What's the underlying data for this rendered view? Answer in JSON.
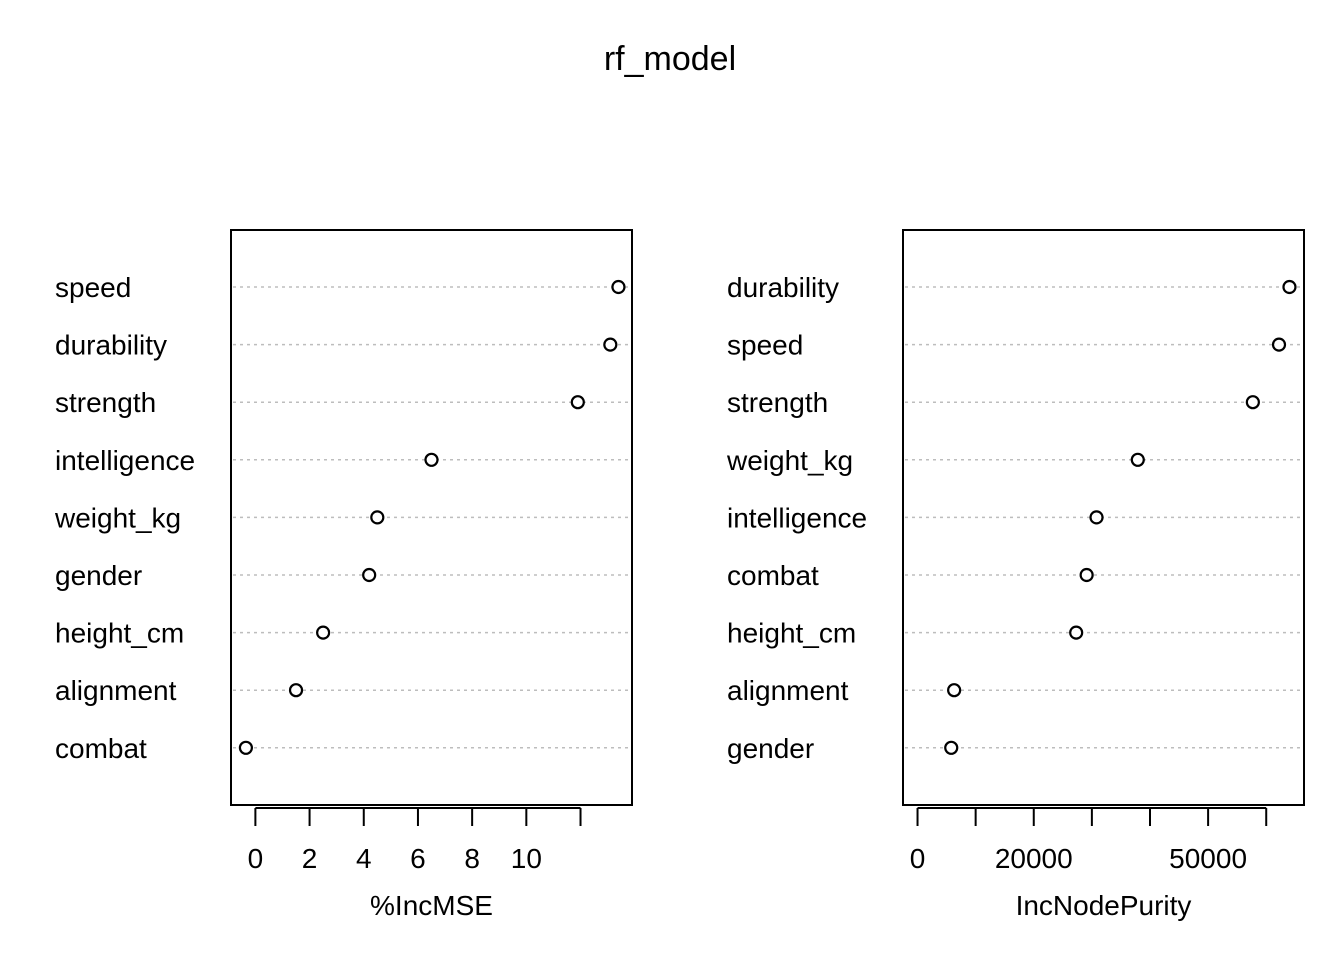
{
  "title": "rf_model",
  "chart_data": [
    {
      "type": "scatter",
      "subtype": "dotchart",
      "xlabel": "%IncMSE",
      "xlim": [
        -0.9,
        13.9
      ],
      "xticks": [
        0,
        2,
        4,
        6,
        8,
        10,
        12
      ],
      "xtick_labels": [
        "0",
        "2",
        "4",
        "6",
        "8",
        "10",
        ""
      ],
      "categories": [
        "speed",
        "durability",
        "strength",
        "intelligence",
        "weight_kg",
        "gender",
        "height_cm",
        "alignment",
        "combat"
      ],
      "values": [
        13.4,
        13.1,
        11.9,
        6.5,
        4.5,
        4.2,
        2.5,
        1.5,
        -0.35
      ],
      "grid": "dotted"
    },
    {
      "type": "scatter",
      "subtype": "dotchart",
      "xlabel": "IncNodePurity",
      "xlim": [
        -2500,
        66500
      ],
      "xticks": [
        0,
        10000,
        20000,
        30000,
        40000,
        50000,
        60000
      ],
      "xtick_labels": [
        "0",
        "",
        "20000",
        "",
        "",
        "50000",
        ""
      ],
      "categories": [
        "durability",
        "speed",
        "strength",
        "weight_kg",
        "intelligence",
        "combat",
        "height_cm",
        "alignment",
        "gender"
      ],
      "values": [
        64000,
        62200,
        57700,
        37900,
        30800,
        29100,
        27300,
        6300,
        5800
      ],
      "grid": "dotted"
    }
  ]
}
